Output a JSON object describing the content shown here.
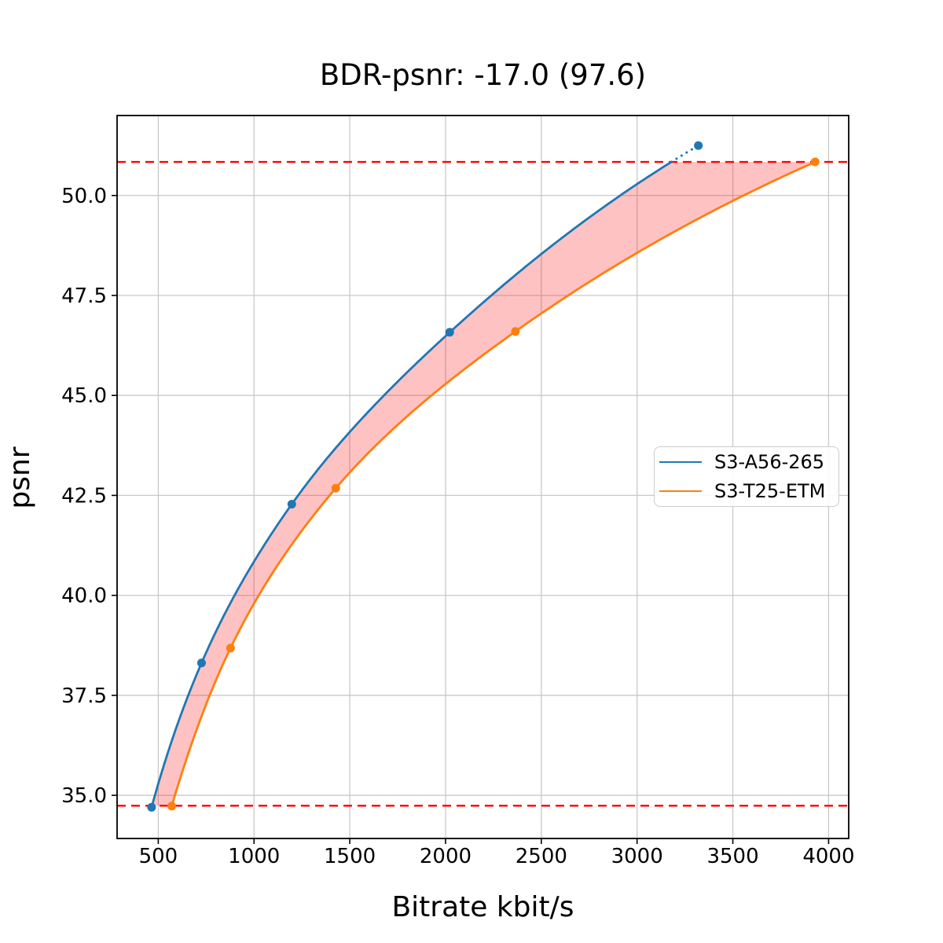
{
  "chart_data": {
    "type": "line",
    "title": "BDR-psnr: -17.0 (97.6)",
    "xlabel": "Bitrate kbit/s",
    "ylabel": "psnr",
    "bd_rate_percent": -17.0,
    "overlap_percent": 97.6,
    "xlim": [
      285,
      4105
    ],
    "ylim": [
      33.92,
      52.0
    ],
    "xticks": [
      500,
      1000,
      1500,
      2000,
      2500,
      3000,
      3500,
      4000
    ],
    "xtick_labels": [
      "500",
      "1000",
      "1500",
      "2000",
      "2500",
      "3000",
      "3500",
      "4000"
    ],
    "yticks": [
      35.0,
      37.5,
      40.0,
      42.5,
      45.0,
      47.5,
      50.0
    ],
    "ytick_labels": [
      "35.0",
      "37.5",
      "40.0",
      "42.5",
      "45.0",
      "47.5",
      "50.0"
    ],
    "grid": true,
    "gridline_color": "#c9c9c9",
    "legend": {
      "position": "center right"
    },
    "series": [
      {
        "name": "S3-A56-265",
        "color": "#1f77b4",
        "x": [
          465,
          726,
          1197,
          2022,
          3320
        ],
        "y": [
          34.7,
          38.31,
          42.28,
          46.58,
          51.25
        ]
      },
      {
        "name": "S3-T25-ETM",
        "color": "#ff7f0e",
        "x": [
          570,
          877,
          1427,
          2365,
          3930
        ],
        "y": [
          34.73,
          38.68,
          42.68,
          46.6,
          50.84
        ]
      }
    ],
    "integration_bounds": {
      "lower_psnr": 34.74,
      "upper_psnr": 50.84,
      "color": "#ff0000"
    },
    "shaded_region_color": "rgba(255,0,0,0.24)"
  }
}
